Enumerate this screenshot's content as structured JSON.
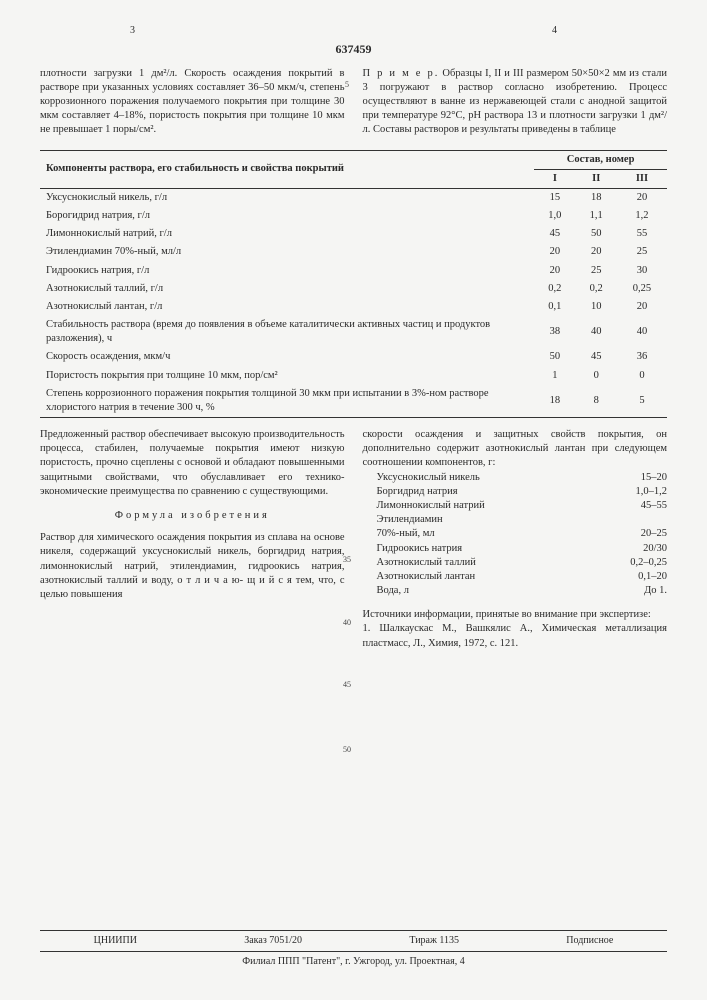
{
  "header": {
    "page_left": "3",
    "page_right": "4",
    "doc_number": "637459"
  },
  "intro_left": "плотности загрузки 1 дм²/л. Скорость осаждения покрытий в растворе при указанных условиях составляет 36–50 мкм/ч, степень коррозионного поражения получаемого покрытия при толщине 30 мкм составляет 4–18%, пористость покрытия при толщине 10 мкм не превышает 1 поры/см².",
  "intro_right_lead": "П р и м е р.",
  "intro_right": " Образцы I, II и III размером 50×50×2 мм из стали 3 погружают в раствор согласно изобретению. Процесс осуществляют в ванне из нержавеющей стали с анодной защитой при температуре 92°С, pH раствора 13 и плотности загрузки 1 дм²/л. Составы растворов и результаты приведены в таблице",
  "table": {
    "head_left": "Компоненты раствора, его стабильность и свойства покрытий",
    "head_right": "Состав, номер",
    "cols": [
      "I",
      "II",
      "III"
    ],
    "rows": [
      {
        "label": "Уксуснокислый никель, г/л",
        "v": [
          "15",
          "18",
          "20"
        ]
      },
      {
        "label": "Борогидрид натрия, г/л",
        "v": [
          "1,0",
          "1,1",
          "1,2"
        ]
      },
      {
        "label": "Лимоннокислый натрий, г/л",
        "v": [
          "45",
          "50",
          "55"
        ]
      },
      {
        "label": "Этилендиамин 70%-ный, мл/л",
        "v": [
          "20",
          "20",
          "25"
        ]
      },
      {
        "label": "Гидроокись натрия, г/л",
        "v": [
          "20",
          "25",
          "30"
        ]
      },
      {
        "label": "Азотнокислый таллий, г/л",
        "v": [
          "0,2",
          "0,2",
          "0,25"
        ]
      },
      {
        "label": "Азотнокислый лантан, г/л",
        "v": [
          "0,1",
          "10",
          "20"
        ]
      },
      {
        "label": "Стабильность раствора (время до появления в объеме каталитически активных частиц и продуктов разложения), ч",
        "v": [
          "38",
          "40",
          "40"
        ]
      },
      {
        "label": "Скорость осаждения, мкм/ч",
        "v": [
          "50",
          "45",
          "36"
        ]
      },
      {
        "label": "Пористость покрытия при толщине 10 мкм, пор/см²",
        "v": [
          "1",
          "0",
          "0"
        ]
      },
      {
        "label": "Степень коррозионного поражения покрытия толщиной 30 мкм при испытании в 3%-ном растворе хлористого натрия в течение 300 ч, %",
        "v": [
          "18",
          "8",
          "5"
        ]
      }
    ]
  },
  "summary_left": "Предложенный раствор обеспечивает высокую производительность процесса, стабилен, получаемые покрытия имеют низкую пористость, прочно сцеплены с основой и обладают повышенными защитными свойствами, что обуславливает его технико-экономические преимущества по сравнению с существующими.",
  "formula_title": "Формула изобретения",
  "claim_left": "Раствор для химического осаждения покрытия из сплава на основе никеля, содержащий уксуснокислый никель, боргидрид натрия, лимоннокислый натрий, этилендиамин, гидроокись натрия, азотнокислый таллий и воду,  о т л и ч а ю- щ и й с я  тем, что, с целью повышения",
  "claim_right_top": "скорости осаждения и защитных свойств покрытия, он дополнительно содержит азотнокислый лантан при следующем соотношении компонентов, г:",
  "components": [
    {
      "name": "Уксуснокислый никель",
      "val": "15–20"
    },
    {
      "name": "Боргидрид натрия",
      "val": "1,0–1,2"
    },
    {
      "name": "Лимоннокислый натрий",
      "val": "45–55"
    },
    {
      "name": "Этилендиамин",
      "val": ""
    },
    {
      "name": "70%-ный, мл",
      "val": "20–25"
    },
    {
      "name": "Гидроокись натрия",
      "val": "20/30"
    },
    {
      "name": "Азотнокислый таллий",
      "val": "0,2–0,25"
    },
    {
      "name": "Азотнокислый лантан",
      "val": "0,1–20"
    },
    {
      "name": "Вода, л",
      "val": "До 1."
    }
  ],
  "refs_title": "Источники информации, принятые во внимание при экспертизе:",
  "ref1": "1. Шалкаускас М., Вашкялис А., Химическая металлизация пластмасс, Л., Химия, 1972, с. 121.",
  "footer": {
    "org": "ЦНИИПИ",
    "order": "Заказ 7051/20",
    "tirage": "Тираж 1135",
    "sub": "Подписное",
    "branch": "Филиал ППП \"Патент\", г. Ужгород, ул. Проектная, 4"
  },
  "markers": {
    "m5": "5",
    "m35": "35",
    "m40": "40",
    "m45": "45",
    "m50": "50"
  }
}
